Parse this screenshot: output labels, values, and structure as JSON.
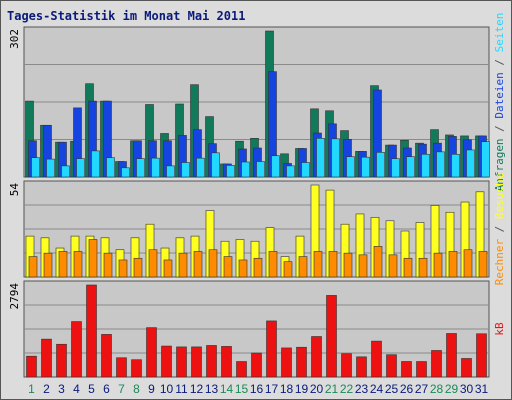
{
  "title": "Tages-Statistik im Monat Mai 2011",
  "colors": {
    "background": "#dcdcdc",
    "panel": "#c8c8c8",
    "grid": "#8a8a8a",
    "title": "#0a1a7a",
    "anfragen": "#117a5b",
    "dateien": "#1644e0",
    "seiten": "#22d8ff",
    "besuche": "#ffff20",
    "rechner": "#ff8c00",
    "kb": "#ee1111",
    "weekday_label": "#0a1a7a",
    "weekend_label": "#1a8a5a"
  },
  "chart_data": [
    {
      "type": "bar",
      "name_panel": "top",
      "ymax_label": "302",
      "ylim": [
        0,
        302
      ],
      "categories": [
        "1",
        "2",
        "3",
        "4",
        "5",
        "6",
        "7",
        "8",
        "9",
        "10",
        "11",
        "12",
        "13",
        "14",
        "15",
        "16",
        "17",
        "18",
        "19",
        "20",
        "21",
        "22",
        "23",
        "24",
        "25",
        "26",
        "27",
        "28",
        "29",
        "30",
        "31"
      ],
      "weekend_days": [
        "1",
        "7",
        "8",
        "14",
        "15",
        "21",
        "22",
        "28",
        "29"
      ],
      "series": [
        {
          "name": "Anfragen",
          "color": "#117a5b",
          "values": [
            157,
            107,
            72,
            74,
            193,
            157,
            32,
            75,
            150,
            90,
            151,
            191,
            125,
            27,
            74,
            80,
            302,
            48,
            59,
            141,
            137,
            96,
            53,
            189,
            66,
            76,
            70,
            98,
            87,
            85,
            85
          ]
        },
        {
          "name": "Dateien",
          "color": "#1644e0",
          "values": [
            75,
            107,
            72,
            143,
            157,
            157,
            32,
            75,
            75,
            75,
            86,
            98,
            69,
            27,
            58,
            60,
            218,
            28,
            59,
            91,
            110,
            78,
            53,
            180,
            66,
            60,
            68,
            70,
            84,
            77,
            85
          ]
        },
        {
          "name": "Seiten",
          "color": "#22d8ff",
          "values": [
            40,
            37,
            23,
            38,
            54,
            40,
            19,
            38,
            39,
            23,
            30,
            39,
            50,
            24,
            31,
            32,
            44,
            23,
            30,
            80,
            79,
            42,
            41,
            51,
            38,
            42,
            47,
            52,
            47,
            56,
            73
          ]
        }
      ],
      "right_axis_labels": [
        "Anfragen",
        "Dateien",
        "Seiten"
      ]
    },
    {
      "type": "bar",
      "name_panel": "middle",
      "ymax_label": "54",
      "ylim": [
        0,
        54
      ],
      "categories": [
        "1",
        "2",
        "3",
        "4",
        "5",
        "6",
        "7",
        "8",
        "9",
        "10",
        "11",
        "12",
        "13",
        "14",
        "15",
        "16",
        "17",
        "18",
        "19",
        "20",
        "21",
        "22",
        "23",
        "24",
        "25",
        "26",
        "27",
        "28",
        "29",
        "30",
        "31"
      ],
      "series": [
        {
          "name": "Besuche",
          "color": "#ffff20",
          "values": [
            24,
            23,
            17,
            24,
            24,
            23,
            16,
            23,
            31,
            17,
            23,
            24,
            39,
            21,
            22,
            21,
            29,
            12,
            24,
            54,
            51,
            31,
            37,
            35,
            33,
            27,
            32,
            42,
            38,
            44,
            50
          ]
        },
        {
          "name": "Rechner",
          "color": "#ff8c00",
          "values": [
            12,
            14,
            15,
            15,
            22,
            14,
            10,
            11,
            16,
            10,
            14,
            15,
            16,
            12,
            10,
            11,
            15,
            9,
            12,
            15,
            15,
            14,
            13,
            18,
            13,
            11,
            11,
            14,
            15,
            16,
            15
          ]
        }
      ],
      "right_axis_labels": [
        "Rechner",
        "Besuche"
      ]
    },
    {
      "type": "bar",
      "name_panel": "bottom",
      "ymax_label": "2794",
      "ylim": [
        0,
        2794
      ],
      "categories": [
        "1",
        "2",
        "3",
        "4",
        "5",
        "6",
        "7",
        "8",
        "9",
        "10",
        "11",
        "12",
        "13",
        "14",
        "15",
        "16",
        "17",
        "18",
        "19",
        "20",
        "21",
        "22",
        "23",
        "24",
        "25",
        "26",
        "27",
        "28",
        "29",
        "30",
        "31"
      ],
      "series": [
        {
          "name": "kB",
          "color": "#ee1111",
          "values": [
            632,
            1150,
            995,
            1684,
            2794,
            1294,
            585,
            526,
            1500,
            940,
            914,
            914,
            958,
            929,
            470,
            728,
            1703,
            883,
            904,
            1230,
            2478,
            706,
            613,
            1090,
            678,
            471,
            470,
            806,
            1321,
            563,
            1313
          ]
        }
      ],
      "right_axis_labels": [
        "kB"
      ]
    }
  ]
}
